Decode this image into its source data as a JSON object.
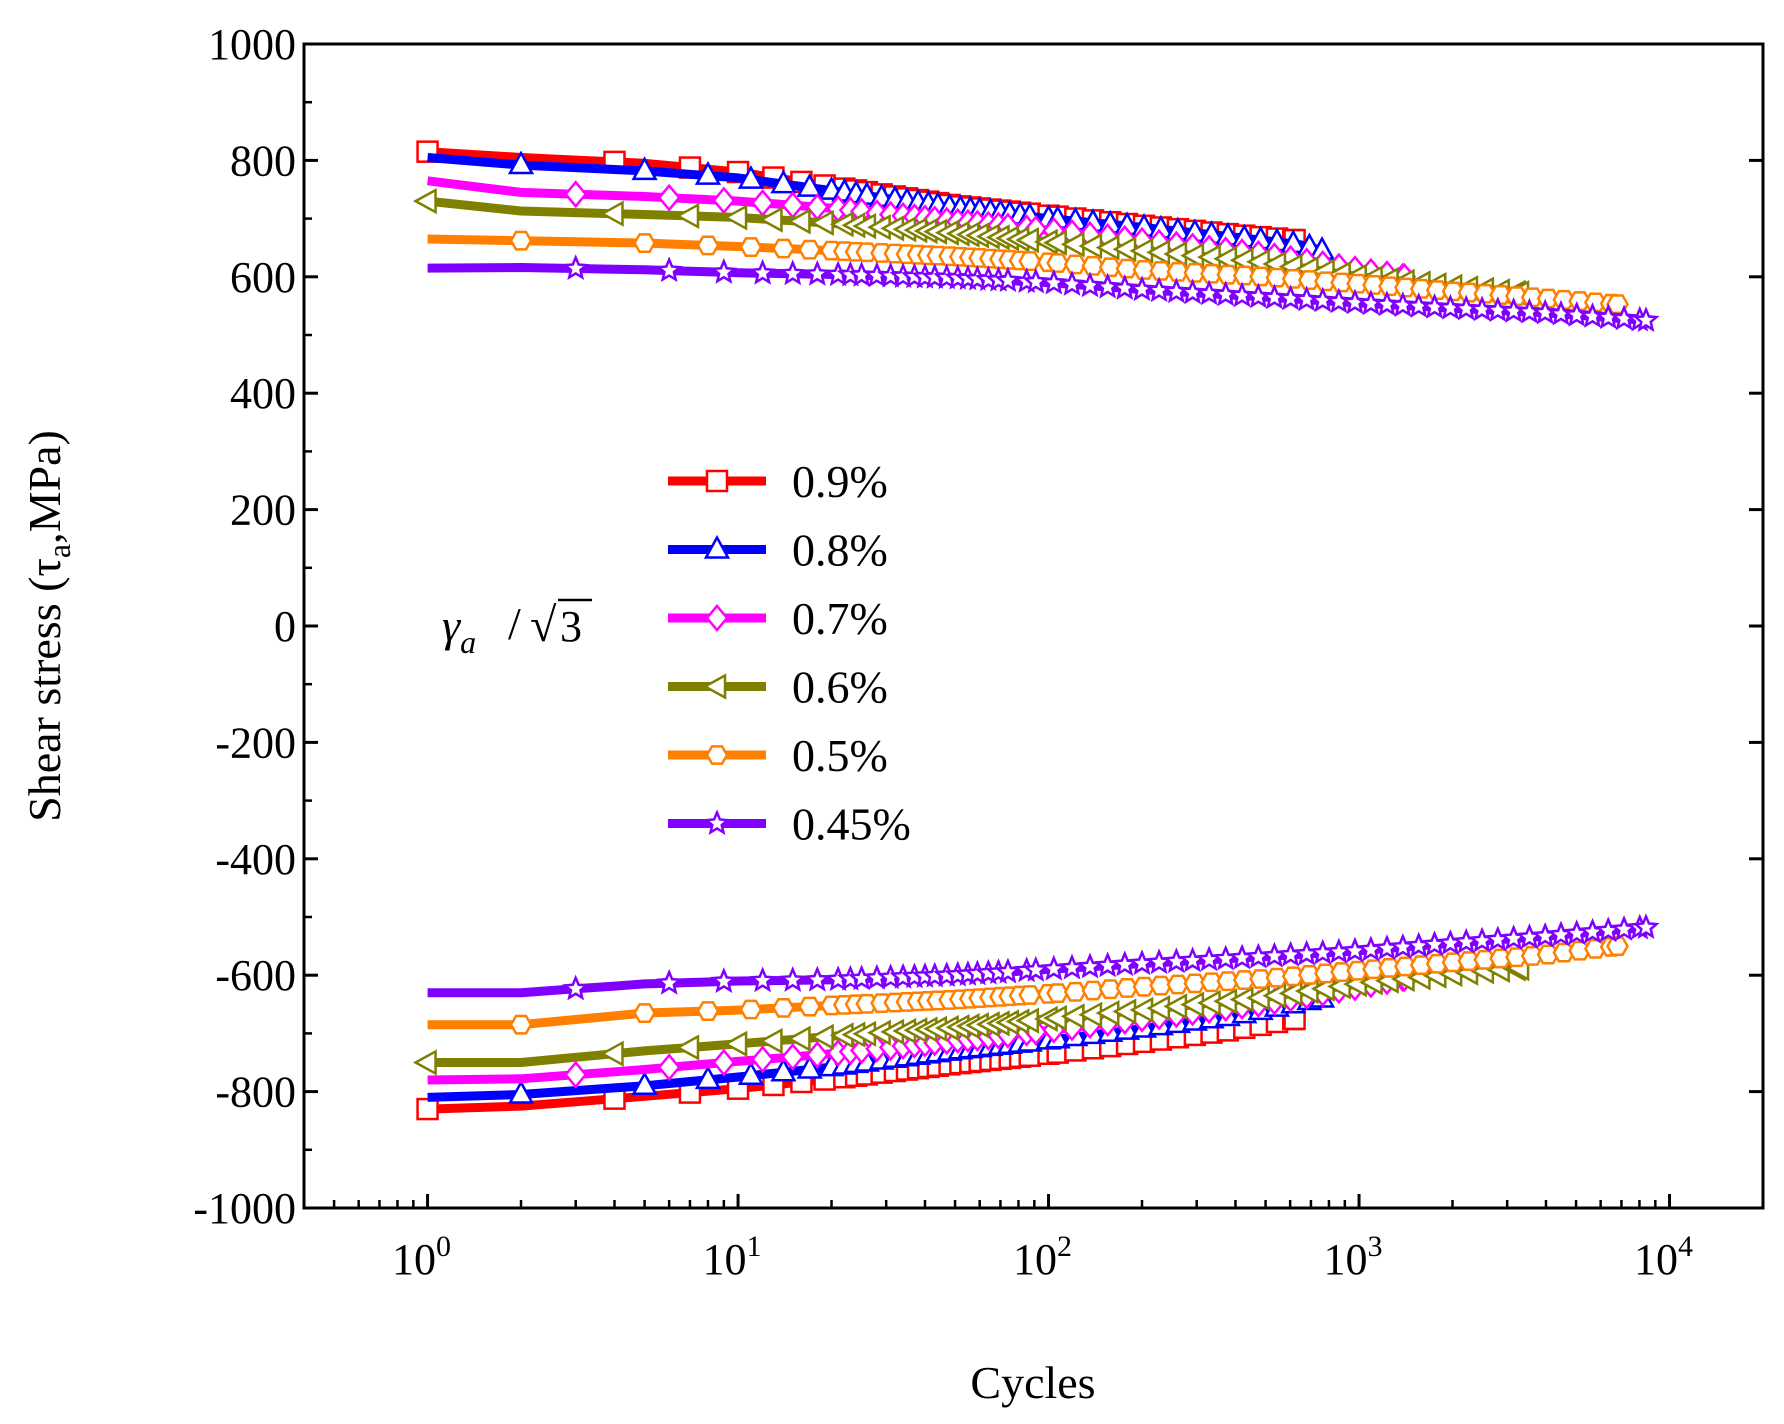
{
  "chart_data": {
    "type": "line",
    "xlabel": "Cycles",
    "ylabel_main": "Shear stress (τ",
    "ylabel_sub": "a",
    "ylabel_tail": ",MPa)",
    "xscale": "log",
    "xlim": [
      0.4,
      20000
    ],
    "ylim": [
      -1000,
      1000
    ],
    "yticks": [
      -1000,
      -800,
      -600,
      -400,
      -200,
      0,
      200,
      400,
      600,
      800,
      1000
    ],
    "ytick_labels": [
      "-1000",
      "-800",
      "-600",
      "-400",
      "-200",
      "0",
      "200",
      "400",
      "600",
      "800",
      "1000"
    ],
    "xtick_base": "10",
    "xticks": [
      {
        "value": 1,
        "exp": "0"
      },
      {
        "value": 10,
        "exp": "1"
      },
      {
        "value": 100,
        "exp": "2"
      },
      {
        "value": 1000,
        "exp": "3"
      },
      {
        "value": 10000,
        "exp": "4"
      }
    ],
    "annotation": {
      "gamma": "γ",
      "sub": "a",
      "slash": "/",
      "radical": "√",
      "radicand": "3"
    },
    "legend_position": "center-left",
    "series": [
      {
        "name": "0.9%",
        "color": "#ff0000",
        "marker": "square",
        "nmax": 620,
        "upper": [
          [
            1,
            815
          ],
          [
            2,
            805
          ],
          [
            5,
            795
          ],
          [
            10,
            780
          ],
          [
            20,
            755
          ],
          [
            50,
            722
          ],
          [
            100,
            705
          ],
          [
            200,
            688
          ],
          [
            400,
            672
          ],
          [
            620,
            663
          ]
        ],
        "lower": [
          [
            1,
            -830
          ],
          [
            2,
            -825
          ],
          [
            5,
            -808
          ],
          [
            10,
            -795
          ],
          [
            20,
            -778
          ],
          [
            50,
            -752
          ],
          [
            100,
            -735
          ],
          [
            200,
            -715
          ],
          [
            400,
            -693
          ],
          [
            620,
            -675
          ]
        ]
      },
      {
        "name": "0.8%",
        "color": "#0000ff",
        "marker": "triangle",
        "nmax": 760,
        "upper": [
          [
            1,
            805
          ],
          [
            2,
            792
          ],
          [
            5,
            782
          ],
          [
            10,
            770
          ],
          [
            20,
            748
          ],
          [
            50,
            718
          ],
          [
            100,
            700
          ],
          [
            200,
            685
          ],
          [
            400,
            668
          ],
          [
            650,
            655
          ],
          [
            760,
            645
          ]
        ],
        "lower": [
          [
            1,
            -810
          ],
          [
            2,
            -805
          ],
          [
            5,
            -790
          ],
          [
            10,
            -775
          ],
          [
            20,
            -758
          ],
          [
            50,
            -730
          ],
          [
            100,
            -712
          ],
          [
            200,
            -692
          ],
          [
            400,
            -670
          ],
          [
            760,
            -640
          ]
        ]
      },
      {
        "name": "0.7%",
        "color": "#ff00ff",
        "marker": "diamond",
        "nmax": 1400,
        "upper": [
          [
            1,
            765
          ],
          [
            2,
            745
          ],
          [
            5,
            738
          ],
          [
            10,
            730
          ],
          [
            20,
            718
          ],
          [
            50,
            695
          ],
          [
            100,
            680
          ],
          [
            200,
            662
          ],
          [
            500,
            638
          ],
          [
            1000,
            612
          ],
          [
            1400,
            600
          ]
        ],
        "lower": [
          [
            1,
            -780
          ],
          [
            2,
            -778
          ],
          [
            5,
            -762
          ],
          [
            10,
            -748
          ],
          [
            20,
            -735
          ],
          [
            50,
            -712
          ],
          [
            100,
            -695
          ],
          [
            200,
            -675
          ],
          [
            500,
            -648
          ],
          [
            1000,
            -620
          ],
          [
            1400,
            -605
          ]
        ]
      },
      {
        "name": "0.6%",
        "color": "#808000",
        "marker": "left-triangle",
        "nmax": 3300,
        "upper": [
          [
            1,
            730
          ],
          [
            2,
            713
          ],
          [
            5,
            707
          ],
          [
            10,
            702
          ],
          [
            20,
            692
          ],
          [
            50,
            675
          ],
          [
            100,
            660
          ],
          [
            200,
            645
          ],
          [
            500,
            625
          ],
          [
            1000,
            600
          ],
          [
            2000,
            583
          ],
          [
            3300,
            572
          ]
        ],
        "lower": [
          [
            1,
            -750
          ],
          [
            2,
            -750
          ],
          [
            5,
            -730
          ],
          [
            10,
            -718
          ],
          [
            20,
            -705
          ],
          [
            50,
            -690
          ],
          [
            100,
            -675
          ],
          [
            200,
            -660
          ],
          [
            500,
            -638
          ],
          [
            1000,
            -615
          ],
          [
            2000,
            -598
          ],
          [
            3300,
            -588
          ]
        ]
      },
      {
        "name": "0.5%",
        "color": "#ff8000",
        "marker": "hexagon",
        "nmax": 6800,
        "upper": [
          [
            1,
            665
          ],
          [
            2,
            662
          ],
          [
            5,
            658
          ],
          [
            10,
            652
          ],
          [
            20,
            645
          ],
          [
            50,
            635
          ],
          [
            100,
            625
          ],
          [
            200,
            612
          ],
          [
            500,
            600
          ],
          [
            1000,
            588
          ],
          [
            2000,
            575
          ],
          [
            4000,
            563
          ],
          [
            6800,
            553
          ]
        ],
        "lower": [
          [
            1,
            -685
          ],
          [
            2,
            -685
          ],
          [
            5,
            -665
          ],
          [
            10,
            -660
          ],
          [
            20,
            -652
          ],
          [
            50,
            -642
          ],
          [
            100,
            -632
          ],
          [
            200,
            -620
          ],
          [
            500,
            -606
          ],
          [
            1000,
            -592
          ],
          [
            2000,
            -578
          ],
          [
            4000,
            -565
          ],
          [
            6800,
            -550
          ]
        ]
      },
      {
        "name": "0.45%",
        "color": "#8000ff",
        "marker": "star",
        "nmax": 8400,
        "upper": [
          [
            1,
            615
          ],
          [
            2,
            616
          ],
          [
            5,
            612
          ],
          [
            10,
            607
          ],
          [
            20,
            604
          ],
          [
            50,
            598
          ],
          [
            100,
            590
          ],
          [
            200,
            578
          ],
          [
            500,
            565
          ],
          [
            1000,
            555
          ],
          [
            2000,
            546
          ],
          [
            4000,
            538
          ],
          [
            8400,
            525
          ]
        ],
        "lower": [
          [
            1,
            -630
          ],
          [
            2,
            -630
          ],
          [
            5,
            -615
          ],
          [
            10,
            -610
          ],
          [
            20,
            -608
          ],
          [
            50,
            -600
          ],
          [
            100,
            -590
          ],
          [
            200,
            -580
          ],
          [
            500,
            -568
          ],
          [
            1000,
            -558
          ],
          [
            2000,
            -545
          ],
          [
            4000,
            -533
          ],
          [
            8400,
            -518
          ]
        ]
      }
    ]
  }
}
